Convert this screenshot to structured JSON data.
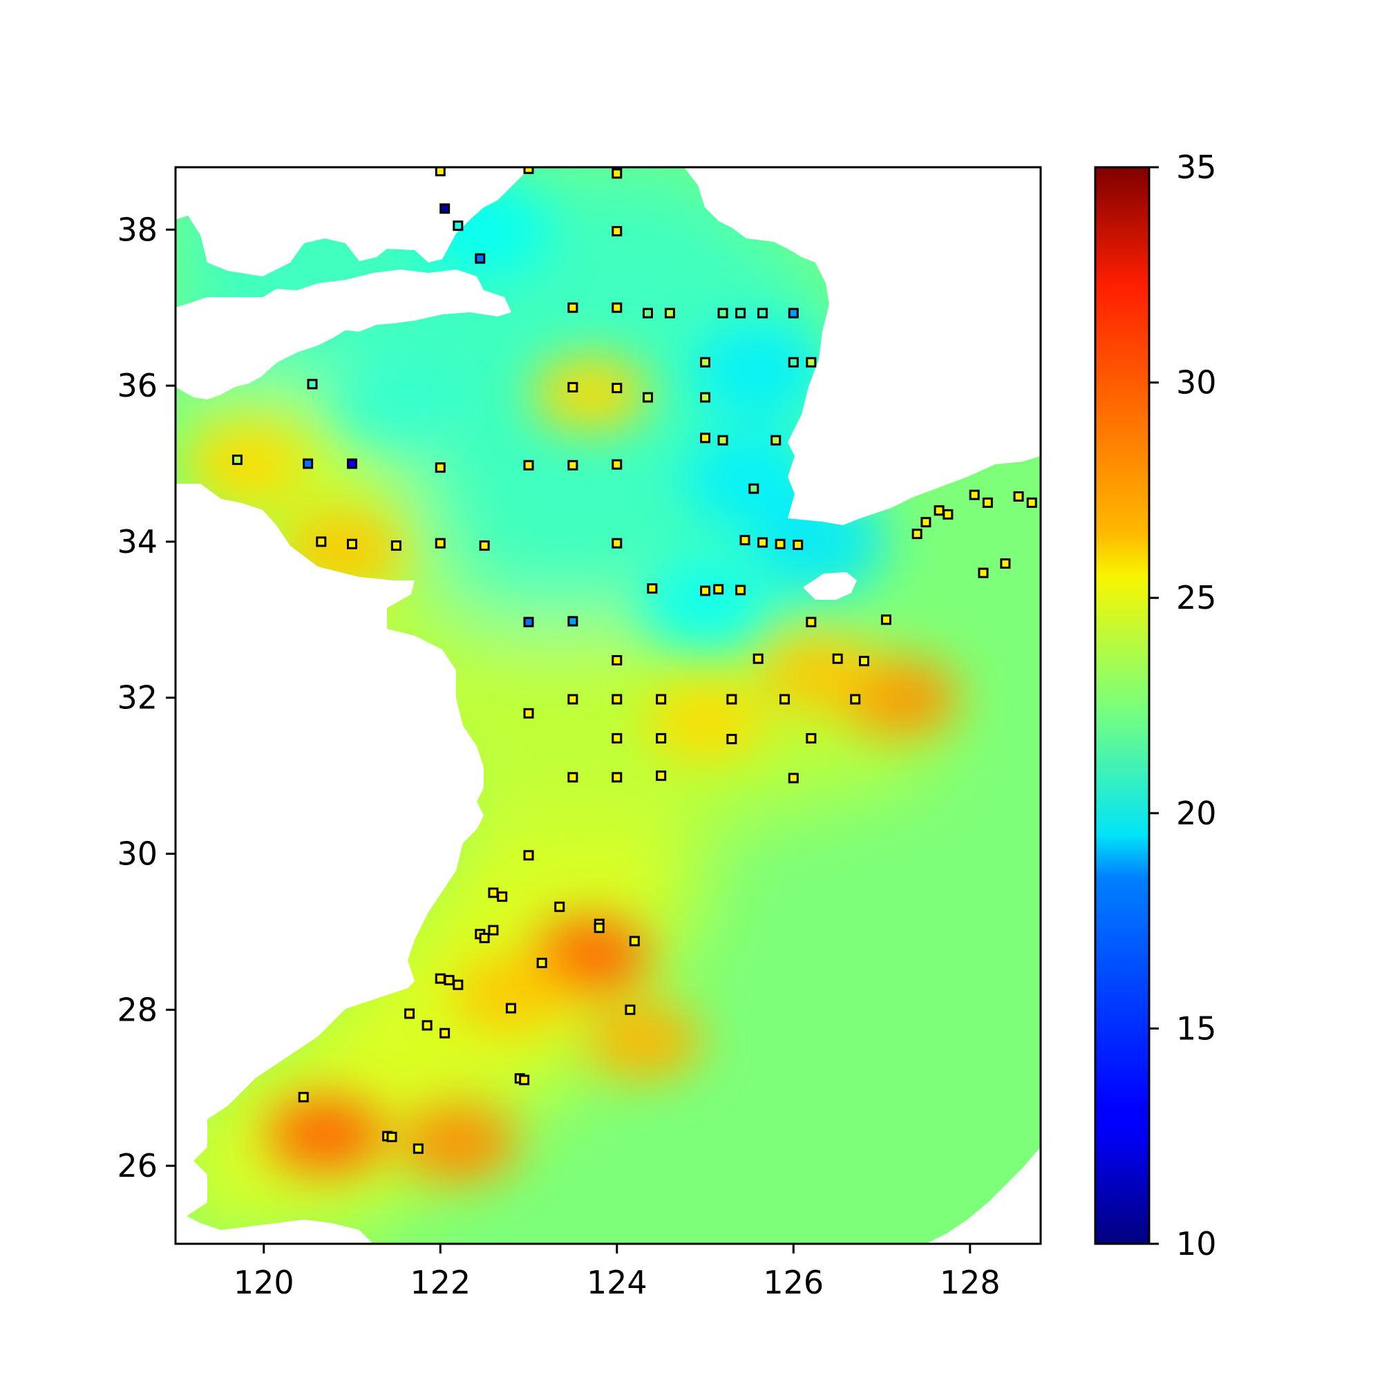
{
  "chart_data": {
    "type": "heatmap",
    "title": "",
    "xlabel": "",
    "ylabel": "",
    "xlim": [
      119.0,
      128.8
    ],
    "ylim": [
      25.0,
      38.8
    ],
    "x_ticks": [
      120,
      122,
      124,
      126,
      128
    ],
    "y_ticks": [
      26,
      28,
      30,
      32,
      34,
      36,
      38
    ],
    "colorbar": {
      "colormap": "jet",
      "range": [
        10,
        35
      ],
      "ticks": [
        10,
        15,
        20,
        25,
        30,
        35
      ]
    },
    "field_hotspots": [
      {
        "lon": 120.7,
        "lat": 26.4,
        "value": 29.5
      },
      {
        "lon": 122.2,
        "lat": 26.3,
        "value": 28.5
      },
      {
        "lon": 123.7,
        "lat": 28.7,
        "value": 29.5
      },
      {
        "lon": 124.3,
        "lat": 27.6,
        "value": 27.5
      },
      {
        "lon": 122.8,
        "lat": 28.2,
        "value": 27.0
      },
      {
        "lon": 127.2,
        "lat": 32.0,
        "value": 28.3
      },
      {
        "lon": 126.3,
        "lat": 32.3,
        "value": 27.0
      },
      {
        "lon": 125.0,
        "lat": 31.7,
        "value": 26.5
      },
      {
        "lon": 120.9,
        "lat": 33.9,
        "value": 27.0
      },
      {
        "lon": 123.7,
        "lat": 35.9,
        "value": 26.5
      },
      {
        "lon": 119.8,
        "lat": 35.0,
        "value": 26.5
      }
    ],
    "field_coldspots": [
      {
        "lon": 125.6,
        "lat": 36.2,
        "value": 19.0
      },
      {
        "lon": 125.5,
        "lat": 34.8,
        "value": 19.0
      },
      {
        "lon": 126.3,
        "lat": 34.0,
        "value": 18.8
      },
      {
        "lon": 125.0,
        "lat": 33.2,
        "value": 19.5
      },
      {
        "lon": 122.5,
        "lat": 38.0,
        "value": 19.5
      },
      {
        "lon": 121.5,
        "lat": 35.8,
        "value": 20.5
      }
    ],
    "stations": [
      {
        "lon": 122.0,
        "lat": 38.75,
        "value": 26
      },
      {
        "lon": 123.0,
        "lat": 38.78,
        "value": 26
      },
      {
        "lon": 124.0,
        "lat": 38.72,
        "value": 26
      },
      {
        "lon": 122.05,
        "lat": 38.27,
        "value": 11
      },
      {
        "lon": 122.2,
        "lat": 38.05,
        "value": 20
      },
      {
        "lon": 124.0,
        "lat": 37.98,
        "value": 26
      },
      {
        "lon": 122.45,
        "lat": 37.63,
        "value": 16
      },
      {
        "lon": 123.5,
        "lat": 37.0,
        "value": 26
      },
      {
        "lon": 124.0,
        "lat": 37.0,
        "value": 26
      },
      {
        "lon": 124.35,
        "lat": 36.93,
        "value": 22
      },
      {
        "lon": 124.6,
        "lat": 36.93,
        "value": 24
      },
      {
        "lon": 125.2,
        "lat": 36.93,
        "value": 22
      },
      {
        "lon": 125.4,
        "lat": 36.93,
        "value": 21
      },
      {
        "lon": 125.65,
        "lat": 36.93,
        "value": 21
      },
      {
        "lon": 126.0,
        "lat": 36.93,
        "value": 17
      },
      {
        "lon": 125.0,
        "lat": 36.3,
        "value": 24
      },
      {
        "lon": 126.0,
        "lat": 36.3,
        "value": 21
      },
      {
        "lon": 126.2,
        "lat": 36.3,
        "value": 24
      },
      {
        "lon": 120.55,
        "lat": 36.02,
        "value": 21
      },
      {
        "lon": 123.5,
        "lat": 35.98,
        "value": 26
      },
      {
        "lon": 124.0,
        "lat": 35.97,
        "value": 26
      },
      {
        "lon": 124.35,
        "lat": 35.85,
        "value": 24
      },
      {
        "lon": 125.0,
        "lat": 35.85,
        "value": 24
      },
      {
        "lon": 125.0,
        "lat": 35.33,
        "value": 26
      },
      {
        "lon": 125.2,
        "lat": 35.3,
        "value": 24
      },
      {
        "lon": 125.8,
        "lat": 35.3,
        "value": 24
      },
      {
        "lon": 119.7,
        "lat": 35.05,
        "value": 24
      },
      {
        "lon": 120.5,
        "lat": 35.0,
        "value": 16
      },
      {
        "lon": 121.0,
        "lat": 35.0,
        "value": 13
      },
      {
        "lon": 122.0,
        "lat": 34.95,
        "value": 26
      },
      {
        "lon": 123.0,
        "lat": 34.98,
        "value": 26
      },
      {
        "lon": 123.5,
        "lat": 34.98,
        "value": 26
      },
      {
        "lon": 124.0,
        "lat": 34.99,
        "value": 26
      },
      {
        "lon": 125.55,
        "lat": 34.68,
        "value": 22
      },
      {
        "lon": 120.65,
        "lat": 34.0,
        "value": 26
      },
      {
        "lon": 121.0,
        "lat": 33.97,
        "value": 26
      },
      {
        "lon": 121.5,
        "lat": 33.95,
        "value": 26
      },
      {
        "lon": 122.0,
        "lat": 33.98,
        "value": 26
      },
      {
        "lon": 122.5,
        "lat": 33.95,
        "value": 26
      },
      {
        "lon": 124.0,
        "lat": 33.98,
        "value": 26
      },
      {
        "lon": 125.45,
        "lat": 34.02,
        "value": 26
      },
      {
        "lon": 125.65,
        "lat": 33.99,
        "value": 26
      },
      {
        "lon": 125.85,
        "lat": 33.97,
        "value": 26
      },
      {
        "lon": 126.05,
        "lat": 33.96,
        "value": 26
      },
      {
        "lon": 127.4,
        "lat": 34.1,
        "value": 26
      },
      {
        "lon": 127.5,
        "lat": 34.25,
        "value": 26
      },
      {
        "lon": 127.65,
        "lat": 34.4,
        "value": 26
      },
      {
        "lon": 127.75,
        "lat": 34.35,
        "value": 26
      },
      {
        "lon": 128.05,
        "lat": 34.6,
        "value": 26
      },
      {
        "lon": 128.2,
        "lat": 34.5,
        "value": 26
      },
      {
        "lon": 128.55,
        "lat": 34.58,
        "value": 26
      },
      {
        "lon": 128.7,
        "lat": 34.5,
        "value": 26
      },
      {
        "lon": 128.15,
        "lat": 33.6,
        "value": 26
      },
      {
        "lon": 128.4,
        "lat": 33.72,
        "value": 26
      },
      {
        "lon": 124.4,
        "lat": 33.4,
        "value": 26
      },
      {
        "lon": 125.0,
        "lat": 33.37,
        "value": 26
      },
      {
        "lon": 125.15,
        "lat": 33.39,
        "value": 26
      },
      {
        "lon": 125.4,
        "lat": 33.38,
        "value": 26
      },
      {
        "lon": 126.2,
        "lat": 32.97,
        "value": 26
      },
      {
        "lon": 127.05,
        "lat": 33.0,
        "value": 26
      },
      {
        "lon": 123.0,
        "lat": 32.97,
        "value": 16
      },
      {
        "lon": 123.5,
        "lat": 32.98,
        "value": 17
      },
      {
        "lon": 124.0,
        "lat": 32.48,
        "value": 26
      },
      {
        "lon": 125.6,
        "lat": 32.5,
        "value": 26
      },
      {
        "lon": 126.5,
        "lat": 32.5,
        "value": 26
      },
      {
        "lon": 126.8,
        "lat": 32.47,
        "value": 26
      },
      {
        "lon": 123.5,
        "lat": 31.98,
        "value": 26
      },
      {
        "lon": 124.0,
        "lat": 31.98,
        "value": 26
      },
      {
        "lon": 124.5,
        "lat": 31.98,
        "value": 26
      },
      {
        "lon": 125.3,
        "lat": 31.98,
        "value": 26
      },
      {
        "lon": 125.9,
        "lat": 31.98,
        "value": 26
      },
      {
        "lon": 126.7,
        "lat": 31.98,
        "value": 26
      },
      {
        "lon": 123.0,
        "lat": 31.8,
        "value": 26
      },
      {
        "lon": 124.0,
        "lat": 31.48,
        "value": 26
      },
      {
        "lon": 124.5,
        "lat": 31.48,
        "value": 26
      },
      {
        "lon": 125.3,
        "lat": 31.47,
        "value": 26
      },
      {
        "lon": 126.2,
        "lat": 31.48,
        "value": 26
      },
      {
        "lon": 123.5,
        "lat": 30.98,
        "value": 26
      },
      {
        "lon": 124.0,
        "lat": 30.98,
        "value": 26
      },
      {
        "lon": 124.5,
        "lat": 31.0,
        "value": 26
      },
      {
        "lon": 126.0,
        "lat": 30.97,
        "value": 26
      },
      {
        "lon": 123.0,
        "lat": 29.98,
        "value": 26
      },
      {
        "lon": 122.6,
        "lat": 29.5,
        "value": 26
      },
      {
        "lon": 122.7,
        "lat": 29.45,
        "value": 26
      },
      {
        "lon": 123.35,
        "lat": 29.32,
        "value": 26
      },
      {
        "lon": 123.8,
        "lat": 29.1,
        "value": 26
      },
      {
        "lon": 123.8,
        "lat": 29.05,
        "value": 26
      },
      {
        "lon": 122.45,
        "lat": 28.97,
        "value": 26
      },
      {
        "lon": 122.6,
        "lat": 29.02,
        "value": 26
      },
      {
        "lon": 122.5,
        "lat": 28.92,
        "value": 26
      },
      {
        "lon": 124.2,
        "lat": 28.88,
        "value": 26
      },
      {
        "lon": 123.15,
        "lat": 28.6,
        "value": 26
      },
      {
        "lon": 122.0,
        "lat": 28.4,
        "value": 26
      },
      {
        "lon": 122.1,
        "lat": 28.38,
        "value": 26
      },
      {
        "lon": 122.2,
        "lat": 28.32,
        "value": 26
      },
      {
        "lon": 122.8,
        "lat": 28.02,
        "value": 26
      },
      {
        "lon": 124.15,
        "lat": 28.0,
        "value": 26
      },
      {
        "lon": 121.65,
        "lat": 27.95,
        "value": 26
      },
      {
        "lon": 121.85,
        "lat": 27.8,
        "value": 26
      },
      {
        "lon": 122.05,
        "lat": 27.7,
        "value": 26
      },
      {
        "lon": 122.9,
        "lat": 27.12,
        "value": 26
      },
      {
        "lon": 122.95,
        "lat": 27.1,
        "value": 26
      },
      {
        "lon": 120.45,
        "lat": 26.88,
        "value": 26
      },
      {
        "lon": 121.4,
        "lat": 26.38,
        "value": 26
      },
      {
        "lon": 121.45,
        "lat": 26.37,
        "value": 26
      },
      {
        "lon": 121.75,
        "lat": 26.22,
        "value": 26
      }
    ]
  }
}
